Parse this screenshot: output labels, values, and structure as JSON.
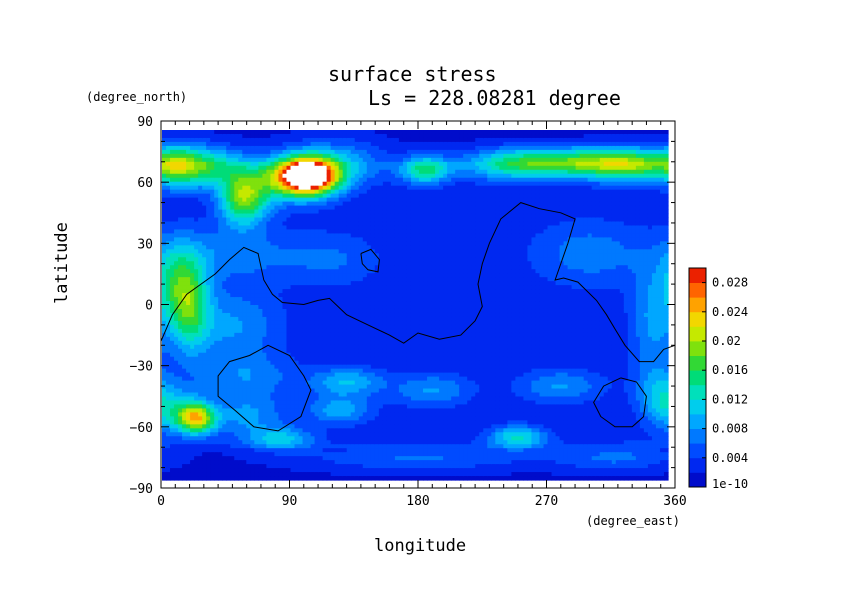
{
  "chart_data": {
    "type": "heatmap",
    "title": "surface stress",
    "subtitle": "Ls = 228.08281 degree",
    "xlabel": "longitude",
    "ylabel": "latitude",
    "x_unit": "(degree_east)",
    "y_unit": "(degree_north)",
    "xlim": [
      0,
      360
    ],
    "ylim": [
      -90,
      90
    ],
    "x_ticks": [
      "0",
      "90",
      "180",
      "270",
      "360"
    ],
    "y_ticks": [
      "90",
      "60",
      "30",
      "0",
      "−30",
      "−60",
      "−90"
    ],
    "x_tick_values": [
      0,
      90,
      180,
      270,
      360
    ],
    "y_tick_values": [
      90,
      60,
      30,
      0,
      -30,
      -60,
      -90
    ],
    "colorbar": {
      "min": 0,
      "max": 0.03,
      "bottom_label": "1e-10",
      "tick_labels": [
        "0.004",
        "0.008",
        "0.012",
        "0.016",
        "0.02",
        "0.024",
        "0.028"
      ],
      "tick_values": [
        0.004,
        0.008,
        0.012,
        0.016,
        0.02,
        0.024,
        0.028
      ]
    },
    "grid": false,
    "features": [
      {
        "lon": 103,
        "lat": 63,
        "value": 0.029,
        "sx": 14,
        "sy": 6
      },
      {
        "lon": 92,
        "lat": 62,
        "value": 0.012,
        "sx": 22,
        "sy": 8
      },
      {
        "lon": 125,
        "lat": 70,
        "value": 0.007,
        "sx": 25,
        "sy": 8
      },
      {
        "lon": 58,
        "lat": 52,
        "value": 0.016,
        "sx": 12,
        "sy": 9
      },
      {
        "lon": 30,
        "lat": 68,
        "value": 0.012,
        "sx": 20,
        "sy": 7
      },
      {
        "lon": 10,
        "lat": 68,
        "value": 0.008,
        "sx": 12,
        "sy": 8
      },
      {
        "lon": 185,
        "lat": 66,
        "value": 0.012,
        "sx": 12,
        "sy": 5
      },
      {
        "lon": 290,
        "lat": 70,
        "value": 0.014,
        "sx": 45,
        "sy": 5
      },
      {
        "lon": 330,
        "lat": 68,
        "value": 0.01,
        "sx": 25,
        "sy": 6
      },
      {
        "lon": 245,
        "lat": 68,
        "value": 0.006,
        "sx": 25,
        "sy": 6
      },
      {
        "lon": 20,
        "lat": 0,
        "value": 0.012,
        "sx": 10,
        "sy": 16
      },
      {
        "lon": 8,
        "lat": 12,
        "value": 0.008,
        "sx": 12,
        "sy": 14
      },
      {
        "lon": 50,
        "lat": -10,
        "value": 0.006,
        "sx": 25,
        "sy": 12
      },
      {
        "lon": 50,
        "lat": 25,
        "value": 0.005,
        "sx": 30,
        "sy": 10
      },
      {
        "lon": 120,
        "lat": 22,
        "value": 0.004,
        "sx": 25,
        "sy": 10
      },
      {
        "lon": 300,
        "lat": 25,
        "value": 0.005,
        "sx": 30,
        "sy": 12
      },
      {
        "lon": 345,
        "lat": -8,
        "value": 0.006,
        "sx": 12,
        "sy": 20
      },
      {
        "lon": 25,
        "lat": -56,
        "value": 0.018,
        "sx": 9,
        "sy": 5
      },
      {
        "lon": 10,
        "lat": -52,
        "value": 0.008,
        "sx": 14,
        "sy": 8
      },
      {
        "lon": 60,
        "lat": -55,
        "value": 0.006,
        "sx": 20,
        "sy": 8
      },
      {
        "lon": 85,
        "lat": -66,
        "value": 0.008,
        "sx": 16,
        "sy": 4
      },
      {
        "lon": 130,
        "lat": -38,
        "value": 0.008,
        "sx": 18,
        "sy": 5
      },
      {
        "lon": 125,
        "lat": -52,
        "value": 0.007,
        "sx": 16,
        "sy": 5
      },
      {
        "lon": 190,
        "lat": -42,
        "value": 0.006,
        "sx": 20,
        "sy": 6
      },
      {
        "lon": 250,
        "lat": -65,
        "value": 0.01,
        "sx": 14,
        "sy": 4
      },
      {
        "lon": 280,
        "lat": -40,
        "value": 0.006,
        "sx": 22,
        "sy": 6
      },
      {
        "lon": 350,
        "lat": -45,
        "value": 0.007,
        "sx": 12,
        "sy": 10
      },
      {
        "lon": 60,
        "lat": -35,
        "value": 0.005,
        "sx": 25,
        "sy": 8
      },
      {
        "lon": 180,
        "lat": -75,
        "value": 0.005,
        "sx": 60,
        "sy": 5
      },
      {
        "lon": 320,
        "lat": -75,
        "value": 0.005,
        "sx": 30,
        "sy": 5
      }
    ],
    "contours": [
      [
        [
          0,
          -18
        ],
        [
          8,
          -5
        ],
        [
          18,
          5
        ],
        [
          28,
          10
        ],
        [
          38,
          15
        ],
        [
          48,
          22
        ],
        [
          58,
          28
        ],
        [
          68,
          25
        ],
        [
          72,
          12
        ],
        [
          78,
          5
        ],
        [
          85,
          1
        ],
        [
          100,
          0
        ],
        [
          110,
          2
        ],
        [
          118,
          3
        ],
        [
          130,
          -5
        ],
        [
          145,
          -10
        ],
        [
          160,
          -15
        ],
        [
          170,
          -19
        ],
        [
          180,
          -14
        ],
        [
          195,
          -17
        ],
        [
          210,
          -15
        ],
        [
          220,
          -8
        ],
        [
          225,
          -1
        ],
        [
          222,
          10
        ],
        [
          225,
          20
        ],
        [
          230,
          30
        ],
        [
          238,
          42
        ],
        [
          252,
          50
        ],
        [
          265,
          47
        ],
        [
          280,
          45
        ],
        [
          290,
          42
        ],
        [
          285,
          30
        ],
        [
          280,
          20
        ],
        [
          276,
          12
        ],
        [
          282,
          13
        ],
        [
          292,
          11
        ],
        [
          305,
          2
        ],
        [
          312,
          -5
        ],
        [
          318,
          -12
        ],
        [
          325,
          -20
        ],
        [
          335,
          -28
        ],
        [
          345,
          -28
        ],
        [
          352,
          -22
        ],
        [
          360,
          -20
        ]
      ],
      [
        [
          140,
          25
        ],
        [
          147,
          27
        ],
        [
          153,
          22
        ],
        [
          152,
          16
        ],
        [
          145,
          17
        ],
        [
          141,
          20
        ],
        [
          140,
          25
        ]
      ],
      [
        [
          62,
          -25
        ],
        [
          75,
          -20
        ],
        [
          90,
          -25
        ],
        [
          100,
          -35
        ],
        [
          105,
          -42
        ],
        [
          98,
          -55
        ],
        [
          82,
          -62
        ],
        [
          65,
          -60
        ],
        [
          52,
          -52
        ],
        [
          40,
          -45
        ],
        [
          40,
          -35
        ],
        [
          48,
          -28
        ],
        [
          62,
          -25
        ]
      ],
      [
        [
          322,
          -36
        ],
        [
          333,
          -38
        ],
        [
          340,
          -45
        ],
        [
          338,
          -55
        ],
        [
          330,
          -60
        ],
        [
          318,
          -60
        ],
        [
          308,
          -55
        ],
        [
          303,
          -48
        ],
        [
          310,
          -40
        ],
        [
          322,
          -36
        ]
      ]
    ]
  }
}
